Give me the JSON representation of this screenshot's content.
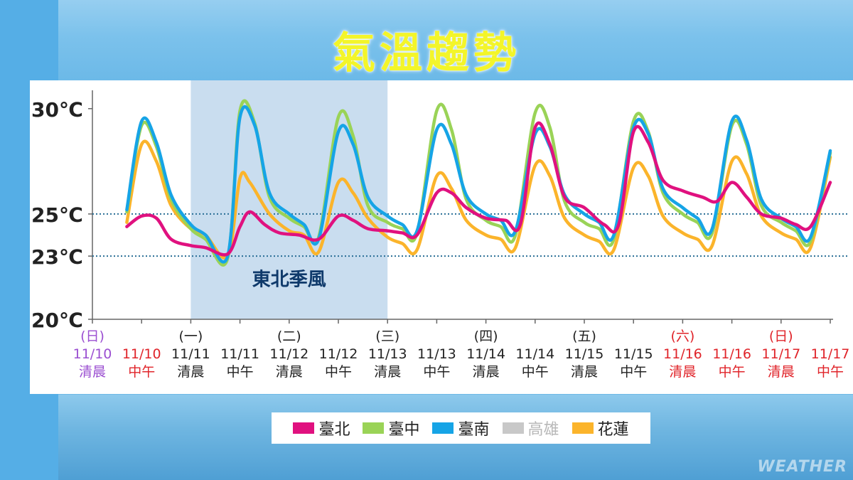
{
  "title": "氣溫趨勢",
  "watermark": "WEATHER",
  "colors": {
    "taipei": "#e0117f",
    "taichung": "#9ad357",
    "tainan": "#16a4e6",
    "kaohsiung": "#c8c8c8",
    "hualien": "#fbb42b",
    "holiday": "#e0242a",
    "sunday": "#9b4fd1",
    "shade": "#c9ddef",
    "refline": "#2a6f96"
  },
  "chart_data": {
    "type": "line",
    "title": "氣溫趨勢",
    "ylim": [
      20,
      30.6
    ],
    "yticks": [
      {
        "value": 30,
        "label": "30℃"
      },
      {
        "value": 25,
        "label": "25℃"
      },
      {
        "value": 23,
        "label": "23℃"
      },
      {
        "value": 20,
        "label": "20℃"
      }
    ],
    "reference_lines": [
      25,
      23
    ],
    "x_count": 16,
    "x_labels": [
      {
        "day": "(日)",
        "date": "11/10",
        "time": "清晨",
        "color": "sunday"
      },
      {
        "day": "",
        "date": "11/10",
        "time": "中午",
        "color": "holiday"
      },
      {
        "day": "(一)",
        "date": "11/11",
        "time": "清晨",
        "color": "normal"
      },
      {
        "day": "",
        "date": "11/11",
        "time": "中午",
        "color": "normal"
      },
      {
        "day": "(二)",
        "date": "11/12",
        "time": "清晨",
        "color": "normal"
      },
      {
        "day": "",
        "date": "11/12",
        "time": "中午",
        "color": "normal"
      },
      {
        "day": "(三)",
        "date": "11/13",
        "time": "清晨",
        "color": "normal"
      },
      {
        "day": "",
        "date": "11/13",
        "time": "中午",
        "color": "normal"
      },
      {
        "day": "(四)",
        "date": "11/14",
        "time": "清晨",
        "color": "normal"
      },
      {
        "day": "",
        "date": "11/14",
        "time": "中午",
        "color": "normal"
      },
      {
        "day": "(五)",
        "date": "11/15",
        "time": "清晨",
        "color": "normal"
      },
      {
        "day": "",
        "date": "11/15",
        "time": "中午",
        "color": "normal"
      },
      {
        "day": "(六)",
        "date": "11/16",
        "time": "清晨",
        "color": "holiday"
      },
      {
        "day": "",
        "date": "11/16",
        "time": "中午",
        "color": "holiday"
      },
      {
        "day": "(日)",
        "date": "11/17",
        "time": "清晨",
        "color": "holiday"
      },
      {
        "day": "",
        "date": "11/17",
        "time": "中午",
        "color": "holiday"
      }
    ],
    "shaded_region": {
      "from": 2,
      "to": 6,
      "label": "東北季風"
    },
    "series": [
      {
        "name": "臺北",
        "key": "taipei",
        "visible": true,
        "points": [
          [
            0.7,
            24.4
          ],
          [
            1.0,
            24.9
          ],
          [
            1.3,
            24.8
          ],
          [
            1.6,
            23.8
          ],
          [
            2.0,
            23.5
          ],
          [
            2.3,
            23.4
          ],
          [
            2.75,
            23.1
          ],
          [
            3.0,
            24.4
          ],
          [
            3.2,
            25.1
          ],
          [
            3.5,
            24.5
          ],
          [
            3.8,
            24.1
          ],
          [
            4.2,
            24.0
          ],
          [
            4.6,
            23.8
          ],
          [
            5.0,
            24.9
          ],
          [
            5.3,
            24.7
          ],
          [
            5.6,
            24.3
          ],
          [
            6.0,
            24.2
          ],
          [
            6.3,
            24.1
          ],
          [
            6.6,
            24.0
          ],
          [
            7.0,
            26.0
          ],
          [
            7.3,
            26.0
          ],
          [
            7.6,
            25.3
          ],
          [
            8.0,
            24.8
          ],
          [
            8.4,
            24.7
          ],
          [
            8.7,
            24.5
          ],
          [
            9.0,
            29.1
          ],
          [
            9.3,
            28.3
          ],
          [
            9.6,
            25.8
          ],
          [
            10.0,
            25.3
          ],
          [
            10.4,
            24.5
          ],
          [
            10.7,
            24.5
          ],
          [
            11.0,
            28.9
          ],
          [
            11.3,
            28.4
          ],
          [
            11.6,
            26.6
          ],
          [
            12.0,
            26.1
          ],
          [
            12.4,
            25.8
          ],
          [
            12.7,
            25.6
          ],
          [
            13.0,
            26.5
          ],
          [
            13.3,
            25.8
          ],
          [
            13.6,
            25.0
          ],
          [
            14.0,
            24.8
          ],
          [
            14.3,
            24.5
          ],
          [
            14.6,
            24.4
          ],
          [
            15.0,
            26.5
          ]
        ]
      },
      {
        "name": "臺中",
        "key": "taichung",
        "visible": true,
        "points": [
          [
            0.7,
            25.1
          ],
          [
            1.0,
            29.2
          ],
          [
            1.3,
            28.2
          ],
          [
            1.6,
            25.7
          ],
          [
            2.0,
            24.3
          ],
          [
            2.3,
            23.8
          ],
          [
            2.75,
            22.9
          ],
          [
            3.0,
            29.9
          ],
          [
            3.3,
            29.3
          ],
          [
            3.6,
            25.8
          ],
          [
            4.0,
            24.8
          ],
          [
            4.3,
            24.4
          ],
          [
            4.6,
            23.9
          ],
          [
            5.0,
            29.6
          ],
          [
            5.3,
            28.7
          ],
          [
            5.6,
            25.4
          ],
          [
            6.0,
            24.6
          ],
          [
            6.3,
            24.3
          ],
          [
            6.6,
            24.1
          ],
          [
            7.0,
            29.9
          ],
          [
            7.3,
            29.0
          ],
          [
            7.6,
            25.7
          ],
          [
            8.0,
            24.7
          ],
          [
            8.3,
            24.4
          ],
          [
            8.6,
            24.0
          ],
          [
            9.0,
            29.8
          ],
          [
            9.3,
            29.1
          ],
          [
            9.6,
            25.6
          ],
          [
            10.0,
            24.6
          ],
          [
            10.3,
            24.3
          ],
          [
            10.6,
            23.8
          ],
          [
            11.0,
            29.4
          ],
          [
            11.3,
            28.9
          ],
          [
            11.6,
            26.0
          ],
          [
            12.0,
            25.0
          ],
          [
            12.3,
            24.6
          ],
          [
            12.6,
            24.1
          ],
          [
            13.0,
            29.2
          ],
          [
            13.3,
            28.3
          ],
          [
            13.6,
            25.4
          ],
          [
            14.0,
            24.6
          ],
          [
            14.3,
            24.2
          ],
          [
            14.6,
            23.7
          ],
          [
            15.0,
            27.9
          ]
        ]
      },
      {
        "name": "臺南",
        "key": "tainan",
        "visible": true,
        "points": [
          [
            0.7,
            25.2
          ],
          [
            1.0,
            29.4
          ],
          [
            1.3,
            28.4
          ],
          [
            1.6,
            25.9
          ],
          [
            2.0,
            24.5
          ],
          [
            2.3,
            24.0
          ],
          [
            2.75,
            23.0
          ],
          [
            3.0,
            29.6
          ],
          [
            3.3,
            29.2
          ],
          [
            3.6,
            26.0
          ],
          [
            4.0,
            25.0
          ],
          [
            4.3,
            24.5
          ],
          [
            4.6,
            23.8
          ],
          [
            5.0,
            28.9
          ],
          [
            5.3,
            28.3
          ],
          [
            5.6,
            25.8
          ],
          [
            6.0,
            24.9
          ],
          [
            6.3,
            24.5
          ],
          [
            6.6,
            24.2
          ],
          [
            7.0,
            29.0
          ],
          [
            7.3,
            28.3
          ],
          [
            7.6,
            25.9
          ],
          [
            8.0,
            25.0
          ],
          [
            8.3,
            24.7
          ],
          [
            8.6,
            24.2
          ],
          [
            9.0,
            28.8
          ],
          [
            9.3,
            28.2
          ],
          [
            9.6,
            25.9
          ],
          [
            10.0,
            25.0
          ],
          [
            10.3,
            24.6
          ],
          [
            10.6,
            24.0
          ],
          [
            11.0,
            29.1
          ],
          [
            11.3,
            28.8
          ],
          [
            11.6,
            26.2
          ],
          [
            12.0,
            25.3
          ],
          [
            12.3,
            24.8
          ],
          [
            12.6,
            24.3
          ],
          [
            13.0,
            29.4
          ],
          [
            13.3,
            28.5
          ],
          [
            13.6,
            25.7
          ],
          [
            14.0,
            24.8
          ],
          [
            14.3,
            24.4
          ],
          [
            14.6,
            23.9
          ],
          [
            15.0,
            28.0
          ]
        ]
      },
      {
        "name": "高雄",
        "key": "kaohsiung",
        "visible": false,
        "points": []
      },
      {
        "name": "花蓮",
        "key": "hualien",
        "visible": true,
        "points": [
          [
            0.7,
            24.6
          ],
          [
            1.0,
            28.3
          ],
          [
            1.3,
            27.5
          ],
          [
            1.6,
            25.4
          ],
          [
            2.0,
            24.3
          ],
          [
            2.3,
            24.0
          ],
          [
            2.75,
            23.0
          ],
          [
            3.0,
            26.7
          ],
          [
            3.2,
            26.5
          ],
          [
            3.6,
            25.0
          ],
          [
            4.0,
            24.2
          ],
          [
            4.3,
            24.0
          ],
          [
            4.6,
            23.2
          ],
          [
            5.0,
            26.5
          ],
          [
            5.3,
            26.0
          ],
          [
            5.6,
            24.8
          ],
          [
            6.0,
            23.9
          ],
          [
            6.3,
            23.6
          ],
          [
            6.6,
            23.3
          ],
          [
            7.0,
            26.8
          ],
          [
            7.3,
            26.2
          ],
          [
            7.6,
            24.7
          ],
          [
            8.0,
            24.0
          ],
          [
            8.3,
            23.8
          ],
          [
            8.6,
            23.4
          ],
          [
            9.0,
            27.3
          ],
          [
            9.3,
            26.8
          ],
          [
            9.6,
            24.8
          ],
          [
            10.0,
            24.0
          ],
          [
            10.3,
            23.7
          ],
          [
            10.6,
            23.3
          ],
          [
            11.0,
            27.2
          ],
          [
            11.3,
            26.8
          ],
          [
            11.6,
            24.9
          ],
          [
            12.0,
            24.1
          ],
          [
            12.3,
            23.8
          ],
          [
            12.6,
            23.5
          ],
          [
            13.0,
            27.5
          ],
          [
            13.3,
            26.9
          ],
          [
            13.6,
            24.9
          ],
          [
            14.0,
            24.1
          ],
          [
            14.3,
            23.8
          ],
          [
            14.6,
            23.4
          ],
          [
            15.0,
            27.7
          ]
        ]
      }
    ]
  }
}
